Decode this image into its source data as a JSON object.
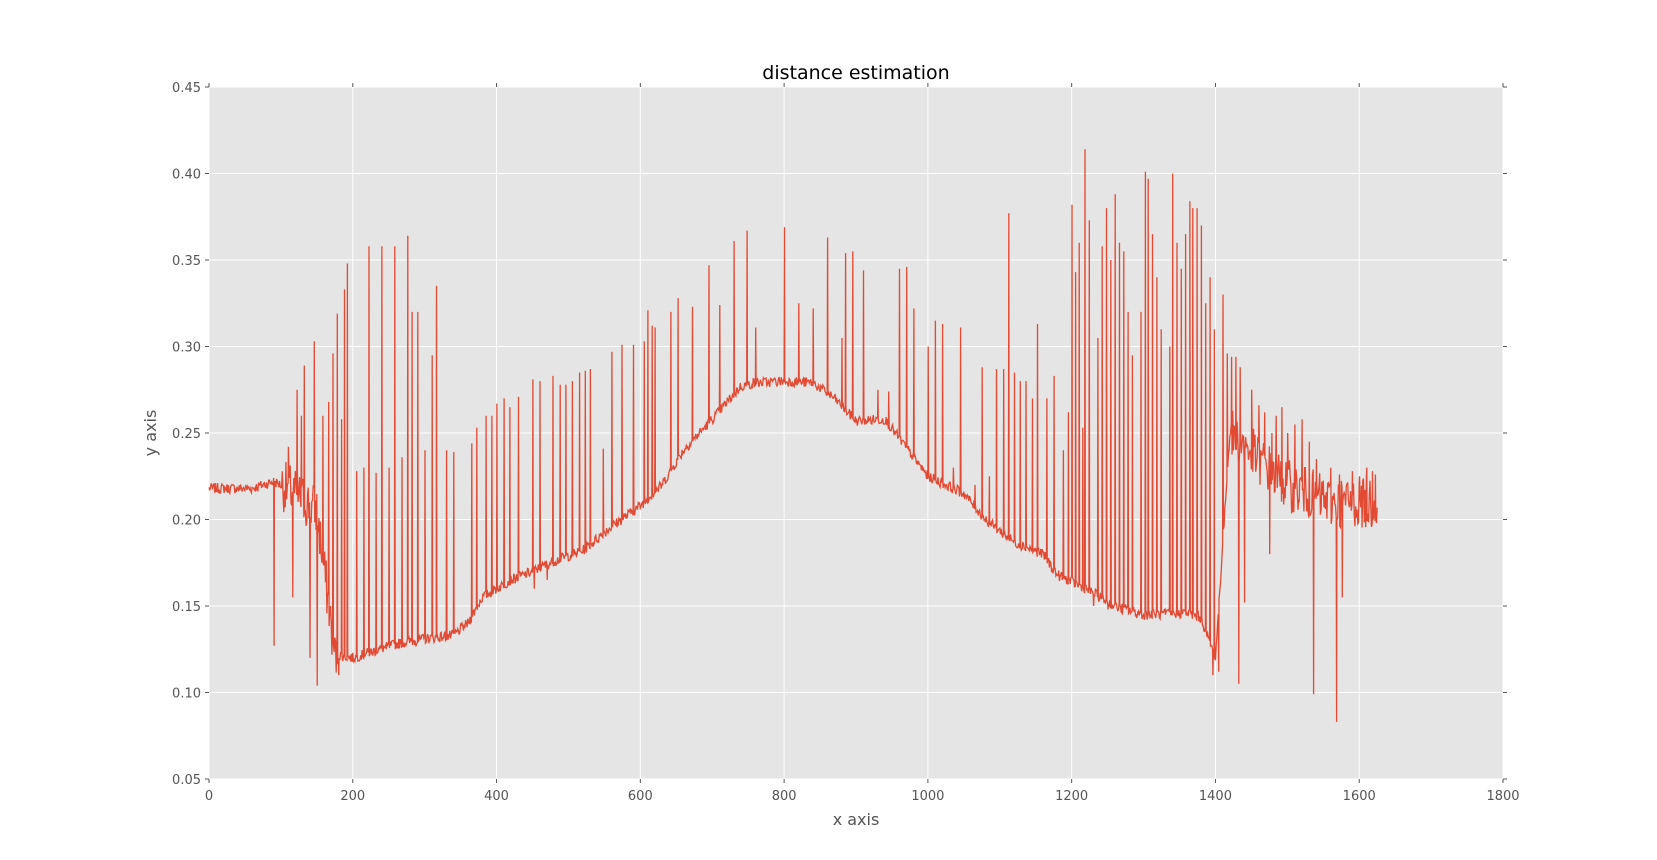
{
  "chart_data": {
    "type": "line",
    "title": "distance estimation",
    "xlabel": "x axis",
    "ylabel": "y axis",
    "xlim": [
      0,
      1800
    ],
    "ylim": [
      0.05,
      0.45
    ],
    "grid": true,
    "x_ticks": [
      "0",
      "200",
      "400",
      "600",
      "800",
      "1000",
      "1200",
      "1400",
      "1600",
      "1800"
    ],
    "y_ticks": [
      "0.05",
      "0.10",
      "0.15",
      "0.20",
      "0.25",
      "0.30",
      "0.35",
      "0.40",
      "0.45"
    ],
    "series": [
      {
        "color": "#E24A33",
        "x_range": [
          0,
          1625
        ],
        "baseline": [
          [
            0,
            0.218
          ],
          [
            60,
            0.218
          ],
          [
            90,
            0.222
          ],
          [
            110,
            0.218
          ],
          [
            150,
            0.205
          ],
          [
            175,
            0.122
          ],
          [
            200,
            0.12
          ],
          [
            230,
            0.124
          ],
          [
            260,
            0.128
          ],
          [
            300,
            0.131
          ],
          [
            340,
            0.133
          ],
          [
            360,
            0.14
          ],
          [
            380,
            0.155
          ],
          [
            420,
            0.165
          ],
          [
            450,
            0.17
          ],
          [
            480,
            0.176
          ],
          [
            520,
            0.182
          ],
          [
            560,
            0.196
          ],
          [
            600,
            0.208
          ],
          [
            630,
            0.22
          ],
          [
            660,
            0.24
          ],
          [
            700,
            0.258
          ],
          [
            740,
            0.277
          ],
          [
            760,
            0.279
          ],
          [
            800,
            0.28
          ],
          [
            840,
            0.279
          ],
          [
            870,
            0.27
          ],
          [
            900,
            0.257
          ],
          [
            940,
            0.258
          ],
          [
            1000,
            0.225
          ],
          [
            1050,
            0.215
          ],
          [
            1080,
            0.2
          ],
          [
            1120,
            0.187
          ],
          [
            1160,
            0.18
          ],
          [
            1180,
            0.168
          ],
          [
            1220,
            0.16
          ],
          [
            1260,
            0.15
          ],
          [
            1300,
            0.145
          ],
          [
            1360,
            0.146
          ],
          [
            1380,
            0.143
          ],
          [
            1400,
            0.12
          ],
          [
            1420,
            0.25
          ],
          [
            1500,
            0.22
          ],
          [
            1560,
            0.21
          ],
          [
            1625,
            0.21
          ]
        ],
        "spikes": [
          [
            90,
            0.127
          ],
          [
            110,
            0.242
          ],
          [
            116,
            0.155
          ],
          [
            122,
            0.275
          ],
          [
            128,
            0.26
          ],
          [
            132,
            0.289
          ],
          [
            140,
            0.12
          ],
          [
            146,
            0.303
          ],
          [
            150,
            0.104
          ],
          [
            158,
            0.26
          ],
          [
            166,
            0.268
          ],
          [
            172,
            0.296
          ],
          [
            178,
            0.319
          ],
          [
            184,
            0.258
          ],
          [
            188,
            0.333
          ],
          [
            192,
            0.348
          ],
          [
            205,
            0.228
          ],
          [
            215,
            0.23
          ],
          [
            222,
            0.358
          ],
          [
            232,
            0.227
          ],
          [
            240,
            0.358
          ],
          [
            250,
            0.23
          ],
          [
            258,
            0.358
          ],
          [
            268,
            0.236
          ],
          [
            276,
            0.364
          ],
          [
            282,
            0.32
          ],
          [
            290,
            0.32
          ],
          [
            300,
            0.24
          ],
          [
            310,
            0.295
          ],
          [
            316,
            0.335
          ],
          [
            330,
            0.24
          ],
          [
            340,
            0.239
          ],
          [
            365,
            0.244
          ],
          [
            372,
            0.253
          ],
          [
            385,
            0.26
          ],
          [
            393,
            0.26
          ],
          [
            400,
            0.267
          ],
          [
            410,
            0.27
          ],
          [
            418,
            0.265
          ],
          [
            430,
            0.271
          ],
          [
            450,
            0.281
          ],
          [
            460,
            0.28
          ],
          [
            470,
            0.28
          ],
          [
            478,
            0.283
          ],
          [
            488,
            0.278
          ],
          [
            496,
            0.278
          ],
          [
            505,
            0.28
          ],
          [
            515,
            0.285
          ],
          [
            523,
            0.286
          ],
          [
            530,
            0.287
          ],
          [
            548,
            0.241
          ],
          [
            560,
            0.297
          ],
          [
            574,
            0.301
          ],
          [
            590,
            0.301
          ],
          [
            605,
            0.303
          ],
          [
            610,
            0.321
          ],
          [
            616,
            0.312
          ],
          [
            620,
            0.311
          ],
          [
            642,
            0.32
          ],
          [
            652,
            0.328
          ],
          [
            672,
            0.323
          ],
          [
            695,
            0.347
          ],
          [
            710,
            0.324
          ],
          [
            730,
            0.361
          ],
          [
            748,
            0.367
          ],
          [
            760,
            0.311
          ],
          [
            800,
            0.369
          ],
          [
            820,
            0.325
          ],
          [
            840,
            0.322
          ],
          [
            860,
            0.363
          ],
          [
            880,
            0.305
          ],
          [
            885,
            0.354
          ],
          [
            895,
            0.355
          ],
          [
            910,
            0.344
          ],
          [
            930,
            0.275
          ],
          [
            945,
            0.274
          ],
          [
            960,
            0.345
          ],
          [
            970,
            0.346
          ],
          [
            980,
            0.322
          ],
          [
            1000,
            0.3
          ],
          [
            1010,
            0.315
          ],
          [
            1020,
            0.313
          ],
          [
            1035,
            0.23
          ],
          [
            1045,
            0.311
          ],
          [
            1065,
            0.22
          ],
          [
            1075,
            0.288
          ],
          [
            1085,
            0.225
          ],
          [
            1095,
            0.287
          ],
          [
            1105,
            0.287
          ],
          [
            1112,
            0.377
          ],
          [
            1120,
            0.285
          ],
          [
            1128,
            0.28
          ],
          [
            1136,
            0.28
          ],
          [
            1145,
            0.27
          ],
          [
            1152,
            0.313
          ],
          [
            1165,
            0.27
          ],
          [
            1175,
            0.283
          ],
          [
            1188,
            0.24
          ],
          [
            1195,
            0.262
          ],
          [
            1200,
            0.382
          ],
          [
            1205,
            0.343
          ],
          [
            1210,
            0.36
          ],
          [
            1215,
            0.253
          ],
          [
            1218,
            0.414
          ],
          [
            1224,
            0.373
          ],
          [
            1230,
            0.373
          ],
          [
            1236,
            0.305
          ],
          [
            1242,
            0.358
          ],
          [
            1248,
            0.38
          ],
          [
            1254,
            0.35
          ],
          [
            1260,
            0.388
          ],
          [
            1266,
            0.36
          ],
          [
            1272,
            0.355
          ],
          [
            1278,
            0.32
          ],
          [
            1284,
            0.295
          ],
          [
            1290,
            0.365
          ],
          [
            1296,
            0.32
          ],
          [
            1302,
            0.401
          ],
          [
            1306,
            0.397
          ],
          [
            1312,
            0.365
          ],
          [
            1318,
            0.34
          ],
          [
            1324,
            0.31
          ],
          [
            1330,
            0.345
          ],
          [
            1336,
            0.3
          ],
          [
            1340,
            0.4
          ],
          [
            1346,
            0.36
          ],
          [
            1352,
            0.345
          ],
          [
            1358,
            0.365
          ],
          [
            1364,
            0.384
          ],
          [
            1368,
            0.38
          ],
          [
            1374,
            0.38
          ],
          [
            1380,
            0.37
          ],
          [
            1386,
            0.325
          ],
          [
            1392,
            0.34
          ],
          [
            1398,
            0.31
          ],
          [
            1404,
            0.29
          ],
          [
            1410,
            0.33
          ],
          [
            1416,
            0.296
          ],
          [
            1422,
            0.294
          ],
          [
            1428,
            0.294
          ],
          [
            1434,
            0.288
          ],
          [
            1440,
            0.152
          ],
          [
            1450,
            0.275
          ],
          [
            1460,
            0.266
          ],
          [
            1468,
            0.262
          ],
          [
            1478,
            0.25
          ],
          [
            1484,
            0.26
          ],
          [
            1492,
            0.265
          ],
          [
            1500,
            0.25
          ],
          [
            1510,
            0.255
          ],
          [
            1520,
            0.258
          ],
          [
            1530,
            0.245
          ],
          [
            1540,
            0.235
          ],
          [
            1536,
            0.099
          ],
          [
            1560,
            0.23
          ],
          [
            1568,
            0.083
          ],
          [
            1572,
            0.226
          ],
          [
            1576,
            0.155
          ],
          [
            1590,
            0.228
          ],
          [
            1600,
            0.225
          ],
          [
            1610,
            0.23
          ],
          [
            1618,
            0.228
          ],
          [
            1622,
            0.226
          ]
        ],
        "dips": [
          [
            180,
            0.11
          ],
          [
            196,
            0.12
          ],
          [
            210,
            0.12
          ],
          [
            226,
            0.122
          ],
          [
            246,
            0.125
          ],
          [
            264,
            0.128
          ],
          [
            286,
            0.13
          ],
          [
            306,
            0.131
          ],
          [
            326,
            0.132
          ],
          [
            452,
            0.16
          ],
          [
            470,
            0.165
          ],
          [
            1230,
            0.15
          ],
          [
            1250,
            0.148
          ],
          [
            1270,
            0.145
          ],
          [
            1290,
            0.143
          ],
          [
            1310,
            0.144
          ],
          [
            1330,
            0.145
          ],
          [
            1350,
            0.146
          ],
          [
            1396,
            0.11
          ],
          [
            1404,
            0.112
          ],
          [
            1432,
            0.105
          ],
          [
            1475,
            0.18
          ],
          [
            1516,
            0.21
          ]
        ]
      }
    ]
  }
}
